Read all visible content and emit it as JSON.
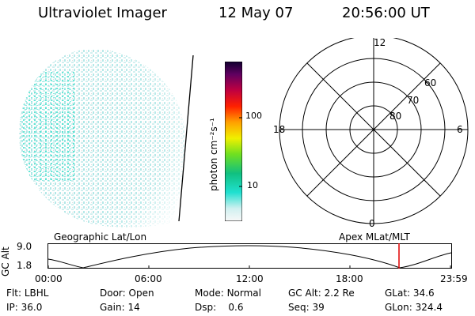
{
  "header": {
    "instrument": "Ultraviolet Imager",
    "date": "12 May 07",
    "time": "20:56:00 UT"
  },
  "colorbar": {
    "unit_label": "photon cm⁻²s⁻¹",
    "ticks": [
      "100",
      "10"
    ]
  },
  "polar_plot": {
    "mlt_labels": {
      "top": "12",
      "left": "18",
      "right": "6",
      "bottom": "0"
    },
    "lat_labels": [
      "60",
      "70",
      "80"
    ]
  },
  "altitude_panel": {
    "ylabel": "GC Alt",
    "yticks": [
      "9.0",
      "1.8"
    ],
    "left_title": "Geographic Lat/Lon",
    "right_title": "Apex MLat/MLT",
    "xticks": [
      "00:00",
      "06:00",
      "12:00",
      "18:00",
      "23:59"
    ],
    "marker_color": "#e00000"
  },
  "status": {
    "row1": [
      {
        "label": "Flt:",
        "value": "LBHL"
      },
      {
        "label": "Door:",
        "value": "Open"
      },
      {
        "label": "Mode:",
        "value": "Normal"
      },
      {
        "label": "GC Alt:",
        "value": "2.2 Re"
      },
      {
        "label": "GLat:",
        "value": "34.6"
      }
    ],
    "row2": [
      {
        "label": "IP:",
        "value": "36.0"
      },
      {
        "label": "Gain:",
        "value": "14"
      },
      {
        "label": "Dsp:",
        "value": "0.6"
      },
      {
        "label": "Seq:",
        "value": "39"
      },
      {
        "label": "GLon:",
        "value": "324.4"
      }
    ]
  }
}
